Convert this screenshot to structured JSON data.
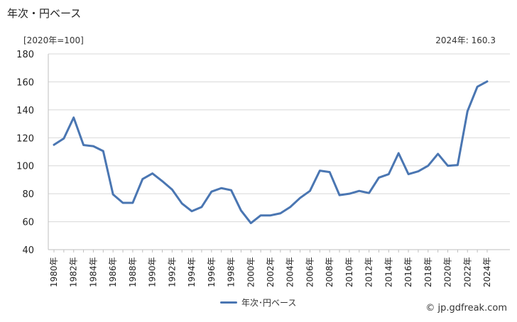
{
  "title": "年次・円ベース",
  "unit_label": "[2020年=100]",
  "annotation": "2024年: 160.3",
  "legend_label": "年次･円ベース",
  "source": "© jp.gdfreak.com",
  "chart_data": {
    "type": "line",
    "x": [
      1980,
      1981,
      1982,
      1983,
      1984,
      1985,
      1986,
      1987,
      1988,
      1989,
      1990,
      1991,
      1992,
      1993,
      1994,
      1995,
      1996,
      1997,
      1998,
      1999,
      2000,
      2001,
      2002,
      2003,
      2004,
      2005,
      2006,
      2007,
      2008,
      2009,
      2010,
      2011,
      2012,
      2013,
      2014,
      2015,
      2016,
      2017,
      2018,
      2019,
      2020,
      2021,
      2022,
      2023,
      2024
    ],
    "series": [
      {
        "name": "年次･円ベース",
        "values": [
          115.0,
          119.5,
          134.5,
          114.8,
          114.0,
          110.5,
          79.5,
          73.5,
          73.5,
          90.5,
          94.5,
          89.0,
          83.0,
          73.0,
          67.5,
          70.5,
          81.5,
          84.0,
          82.5,
          68.0,
          59.0,
          64.5,
          64.5,
          66.0,
          70.5,
          77.0,
          82.0,
          96.5,
          95.5,
          79.0,
          80.0,
          82.0,
          80.5,
          91.5,
          94.0,
          109.0,
          94.0,
          96.0,
          100.0,
          108.5,
          100.0,
          100.5,
          139.0,
          156.5,
          160.3
        ]
      }
    ],
    "xticks": [
      "1980年",
      "1982年",
      "1984年",
      "1986年",
      "1988年",
      "1990年",
      "1992年",
      "1994年",
      "1996年",
      "1998年",
      "2000年",
      "2002年",
      "2004年",
      "2006年",
      "2008年",
      "2010年",
      "2012年",
      "2014年",
      "2016年",
      "2018年",
      "2020年",
      "2022年",
      "2024年"
    ],
    "yticks": [
      "40",
      "60",
      "80",
      "100",
      "120",
      "140",
      "160",
      "180"
    ],
    "ylim": [
      40,
      180
    ],
    "grid": true,
    "color": "#4a76b2"
  }
}
